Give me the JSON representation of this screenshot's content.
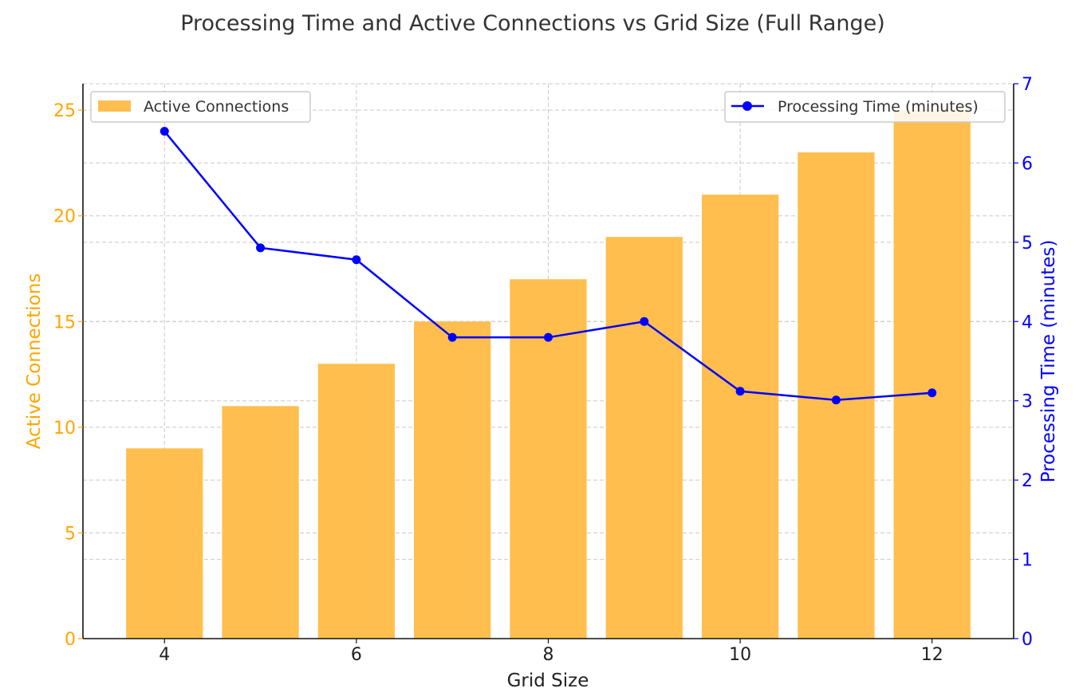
{
  "chart_data": {
    "type": "bar+line",
    "title": "Processing Time and Active Connections vs Grid Size (Full Range)",
    "xlabel": "Grid Size",
    "ylabel_left": "Active Connections",
    "ylabel_right": "Processing Time (minutes)",
    "x": [
      4,
      5,
      6,
      7,
      8,
      9,
      10,
      11,
      12
    ],
    "x_ticks": [
      "4",
      "6",
      "8",
      "10",
      "12"
    ],
    "xlim": [
      3.15,
      12.85
    ],
    "ylim_left": [
      0,
      26.25
    ],
    "ylim_right": [
      0,
      7
    ],
    "y_ticks_left": [
      "0",
      "5",
      "10",
      "15",
      "20",
      "25"
    ],
    "y_ticks_right": [
      "0",
      "1",
      "2",
      "3",
      "4",
      "5",
      "6",
      "7"
    ],
    "grid": true,
    "series": [
      {
        "name": "Active Connections",
        "type": "bar",
        "axis": "left",
        "values": [
          9,
          11,
          13,
          15,
          17,
          19,
          21,
          23,
          25
        ]
      },
      {
        "name": "Processing Time (minutes)",
        "type": "line",
        "axis": "right",
        "values": [
          6.4,
          4.93,
          4.78,
          3.8,
          3.8,
          4.0,
          3.12,
          3.01,
          3.1
        ]
      }
    ],
    "legend": [
      {
        "label": "Active Connections",
        "position": "top-left"
      },
      {
        "label": "Processing Time (minutes)",
        "position": "top-right"
      }
    ]
  },
  "colors": {
    "bar": "#ffbe4d",
    "bar_axis": "#ffa500",
    "line": "#0000ff",
    "grid": "#c8c8c8",
    "text": "#333333"
  }
}
